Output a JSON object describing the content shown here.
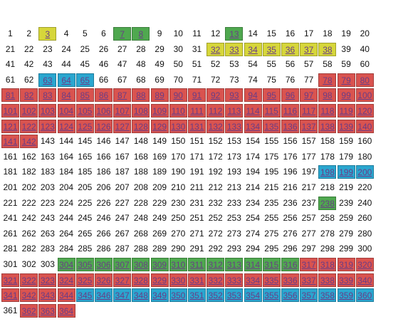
{
  "numbers": [
    1,
    2,
    3,
    4,
    5,
    6,
    7,
    8,
    9,
    10,
    11,
    12,
    13,
    14,
    15,
    16,
    17,
    18,
    19,
    20,
    21,
    22,
    23,
    24,
    25,
    26,
    27,
    28,
    29,
    30,
    31,
    32,
    33,
    34,
    35,
    36,
    37,
    38,
    39,
    40,
    41,
    42,
    43,
    44,
    45,
    46,
    47,
    48,
    49,
    50,
    51,
    52,
    53,
    54,
    55,
    56,
    57,
    58,
    59,
    60,
    61,
    62,
    63,
    64,
    65,
    66,
    67,
    68,
    69,
    70,
    71,
    72,
    73,
    74,
    75,
    76,
    77,
    78,
    79,
    80,
    81,
    82,
    83,
    84,
    85,
    86,
    87,
    88,
    89,
    90,
    91,
    92,
    93,
    94,
    95,
    96,
    97,
    98,
    99,
    100,
    101,
    102,
    103,
    104,
    105,
    106,
    107,
    108,
    109,
    110,
    111,
    112,
    113,
    114,
    115,
    116,
    117,
    118,
    119,
    120,
    121,
    122,
    123,
    124,
    125,
    126,
    127,
    128,
    129,
    130,
    131,
    132,
    133,
    134,
    135,
    136,
    137,
    138,
    139,
    140,
    141,
    142,
    143,
    144,
    145,
    146,
    147,
    148,
    149,
    150,
    151,
    152,
    153,
    154,
    155,
    156,
    157,
    158,
    159,
    160,
    161,
    162,
    163,
    164,
    165,
    166,
    167,
    168,
    169,
    170,
    171,
    172,
    173,
    174,
    175,
    176,
    177,
    178,
    179,
    180,
    181,
    182,
    183,
    184,
    185,
    186,
    187,
    188,
    189,
    190,
    191,
    192,
    193,
    194,
    195,
    196,
    197,
    198,
    199,
    200,
    201,
    202,
    203,
    204,
    205,
    206,
    207,
    208,
    209,
    210,
    211,
    212,
    213,
    214,
    215,
    216,
    217,
    218,
    219,
    220,
    221,
    222,
    223,
    224,
    225,
    226,
    227,
    228,
    229,
    230,
    231,
    232,
    233,
    234,
    235,
    236,
    237,
    238,
    239,
    240,
    241,
    242,
    243,
    244,
    245,
    246,
    247,
    248,
    249,
    250,
    251,
    252,
    253,
    254,
    255,
    256,
    257,
    258,
    259,
    260,
    261,
    262,
    263,
    264,
    265,
    266,
    267,
    268,
    269,
    270,
    271,
    272,
    273,
    274,
    275,
    276,
    277,
    278,
    279,
    280,
    281,
    282,
    283,
    284,
    285,
    286,
    287,
    288,
    289,
    290,
    291,
    292,
    293,
    294,
    295,
    296,
    297,
    298,
    299,
    300,
    301,
    302,
    303,
    304,
    305,
    306,
    307,
    308,
    309,
    310,
    311,
    312,
    313,
    314,
    315,
    316,
    317,
    318,
    319,
    320,
    321,
    322,
    323,
    324,
    325,
    326,
    327,
    328,
    329,
    330,
    331,
    332,
    333,
    334,
    335,
    336,
    337,
    338,
    339,
    340,
    341,
    342,
    343,
    344,
    345,
    346,
    347,
    348,
    349,
    350,
    351,
    352,
    353,
    354,
    355,
    356,
    357,
    358,
    359,
    360,
    361,
    362,
    363,
    364
  ],
  "status": [
    "p",
    "p",
    "y",
    "p",
    "p",
    "p",
    "g",
    "g",
    "p",
    "p",
    "p",
    "p",
    "g",
    "p",
    "p",
    "p",
    "p",
    "p",
    "p",
    "p",
    "p",
    "p",
    "p",
    "p",
    "p",
    "p",
    "p",
    "p",
    "p",
    "p",
    "p",
    "y",
    "y",
    "y",
    "y",
    "y",
    "y",
    "y",
    "p",
    "p",
    "p",
    "p",
    "p",
    "p",
    "p",
    "p",
    "p",
    "p",
    "p",
    "p",
    "p",
    "p",
    "p",
    "p",
    "p",
    "p",
    "p",
    "p",
    "p",
    "p",
    "p",
    "p",
    "b",
    "b",
    "b",
    "p",
    "p",
    "p",
    "p",
    "p",
    "p",
    "p",
    "p",
    "p",
    "p",
    "p",
    "p",
    "r",
    "r",
    "r",
    "r",
    "r",
    "r",
    "r",
    "r",
    "r",
    "r",
    "r",
    "r",
    "r",
    "r",
    "r",
    "r",
    "r",
    "r",
    "r",
    "r",
    "r",
    "r",
    "r",
    "r",
    "r",
    "r",
    "r",
    "r",
    "r",
    "r",
    "r",
    "r",
    "r",
    "r",
    "r",
    "r",
    "r",
    "r",
    "r",
    "r",
    "r",
    "r",
    "r",
    "r",
    "r",
    "r",
    "r",
    "r",
    "r",
    "r",
    "r",
    "r",
    "r",
    "r",
    "r",
    "r",
    "r",
    "r",
    "r",
    "r",
    "r",
    "r",
    "r",
    "r",
    "r",
    "p",
    "p",
    "p",
    "p",
    "p",
    "p",
    "p",
    "p",
    "p",
    "p",
    "p",
    "p",
    "p",
    "p",
    "p",
    "p",
    "p",
    "p",
    "p",
    "p",
    "p",
    "p",
    "p",
    "p",
    "p",
    "p",
    "p",
    "p",
    "p",
    "p",
    "p",
    "p",
    "p",
    "p",
    "p",
    "p",
    "p",
    "p",
    "p",
    "p",
    "p",
    "p",
    "p",
    "p",
    "p",
    "p",
    "p",
    "p",
    "p",
    "p",
    "p",
    "p",
    "p",
    "p",
    "p",
    "b",
    "b",
    "b",
    "p",
    "p",
    "p",
    "p",
    "p",
    "p",
    "p",
    "p",
    "p",
    "p",
    "p",
    "p",
    "p",
    "p",
    "p",
    "p",
    "p",
    "p",
    "p",
    "p",
    "p",
    "p",
    "p",
    "p",
    "p",
    "p",
    "p",
    "p",
    "p",
    "p",
    "p",
    "p",
    "p",
    "p",
    "p",
    "p",
    "p",
    "g",
    "p",
    "p",
    "p",
    "p",
    "p",
    "p",
    "p",
    "p",
    "p",
    "p",
    "p",
    "p",
    "p",
    "p",
    "p",
    "p",
    "p",
    "p",
    "p",
    "p",
    "p",
    "p",
    "p",
    "p",
    "p",
    "p",
    "p",
    "p",
    "p",
    "p",
    "p",
    "p",
    "p",
    "p",
    "p",
    "p",
    "p",
    "p",
    "p",
    "p",
    "p",
    "p",
    "p",
    "p",
    "p",
    "p",
    "p",
    "p",
    "p",
    "p",
    "p",
    "p",
    "p",
    "p",
    "p",
    "p",
    "p",
    "p",
    "p",
    "p",
    "p",
    "p",
    "p",
    "p",
    "p",
    "g",
    "g",
    "g",
    "g",
    "g",
    "g",
    "g",
    "g",
    "g",
    "g",
    "g",
    "g",
    "g",
    "r",
    "r",
    "r",
    "r",
    "r",
    "r",
    "r",
    "r",
    "r",
    "r",
    "r",
    "r",
    "r",
    "r",
    "r",
    "r",
    "r",
    "r",
    "r",
    "r",
    "r",
    "r",
    "r",
    "r",
    "r",
    "r",
    "r",
    "r",
    "b",
    "b",
    "b",
    "b",
    "b",
    "b",
    "b",
    "b",
    "b",
    "b",
    "b",
    "b",
    "b",
    "b",
    "b",
    "b",
    "p",
    "r",
    "r",
    "r"
  ],
  "columns": 20
}
